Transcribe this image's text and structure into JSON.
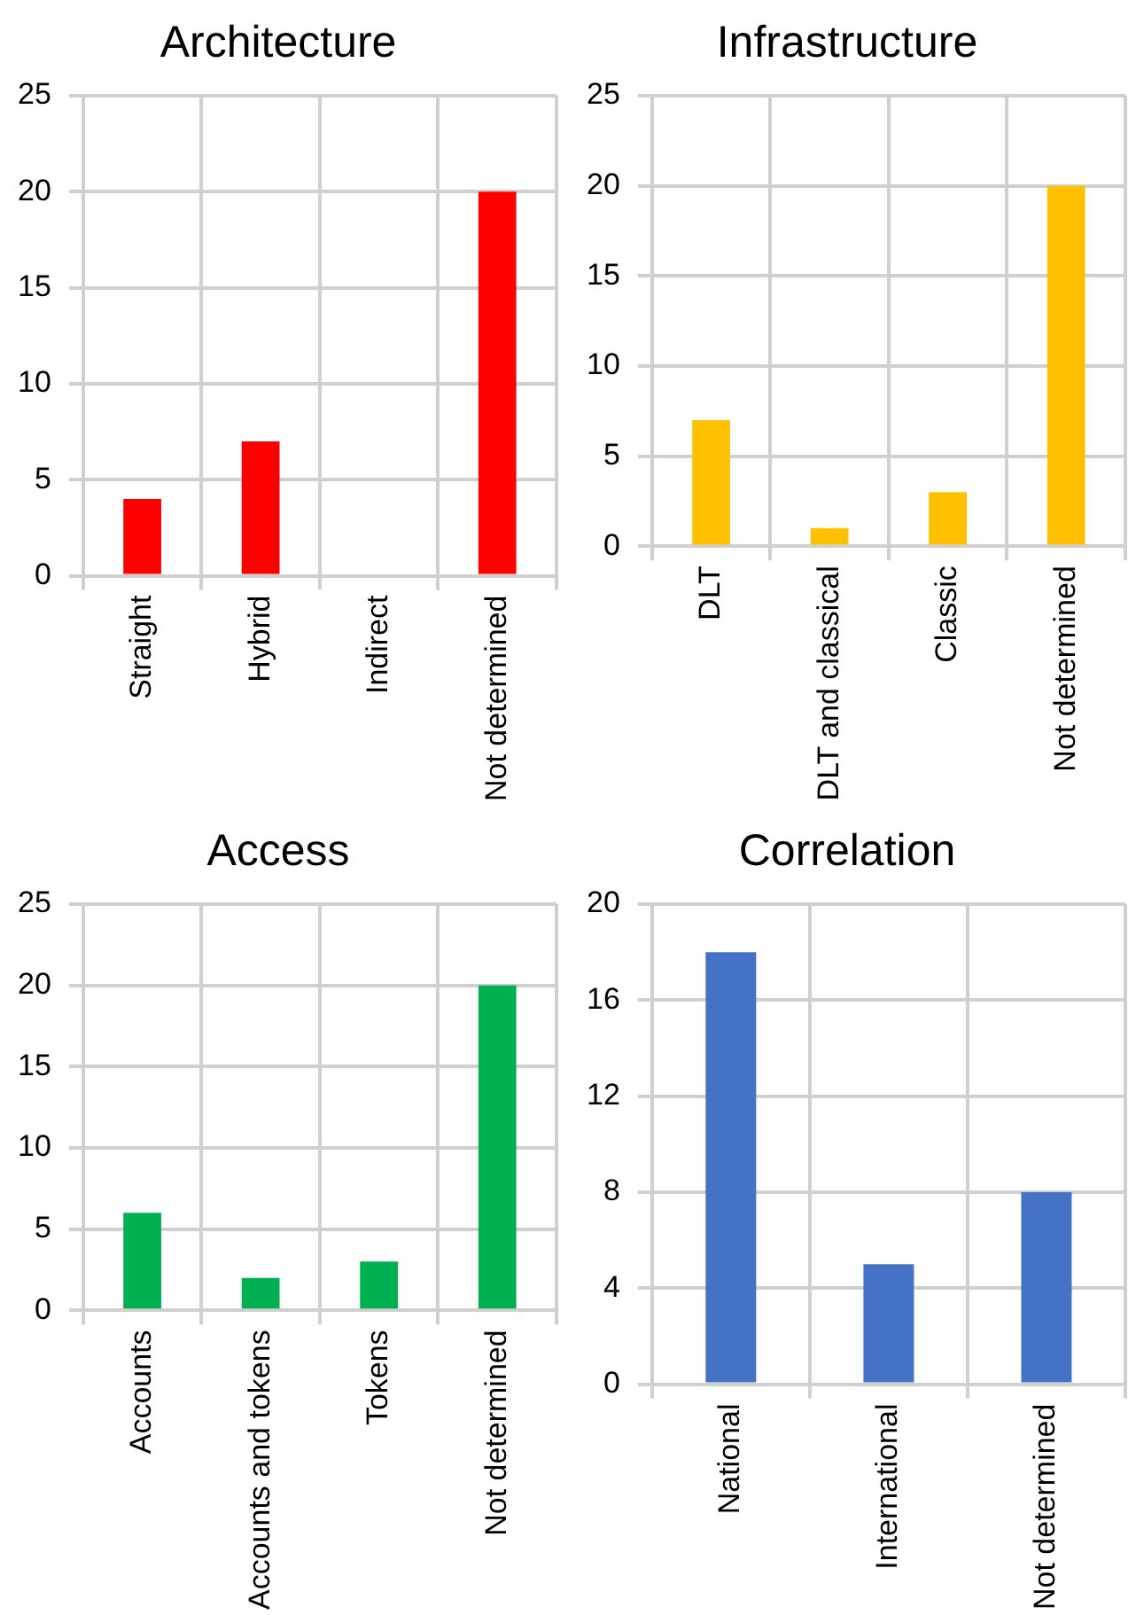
{
  "chart_data": [
    {
      "type": "bar",
      "title": "Architecture",
      "categories": [
        "Straight",
        "Hybrid",
        "Indirect",
        "Not determined"
      ],
      "values": [
        4,
        7,
        0,
        20
      ],
      "color": "#ff0000",
      "ylim": [
        0,
        25
      ],
      "yticks": [
        0,
        5,
        10,
        15,
        20,
        25
      ],
      "grid": true,
      "legend": false
    },
    {
      "type": "bar",
      "title": "Infrastructure",
      "categories": [
        "DLT",
        "DLT and classical",
        "Classic",
        "Not determined"
      ],
      "values": [
        7,
        1,
        3,
        20
      ],
      "color": "#ffc000",
      "ylim": [
        0,
        25
      ],
      "yticks": [
        0,
        5,
        10,
        15,
        20,
        25
      ],
      "grid": true,
      "legend": false
    },
    {
      "type": "bar",
      "title": "Access",
      "categories": [
        "Accounts",
        "Accounts and tokens",
        "Tokens",
        "Not determined"
      ],
      "values": [
        6,
        2,
        3,
        20
      ],
      "color": "#00b050",
      "ylim": [
        0,
        25
      ],
      "yticks": [
        0,
        5,
        10,
        15,
        20,
        25
      ],
      "grid": true,
      "legend": false
    },
    {
      "type": "bar",
      "title": "Correlation",
      "categories": [
        "National",
        "International",
        "Not determined"
      ],
      "values": [
        18,
        5,
        8
      ],
      "color": "#4472c4",
      "ylim": [
        0,
        20
      ],
      "yticks": [
        0,
        4,
        8,
        12,
        16,
        20
      ],
      "grid": true,
      "legend": false
    }
  ]
}
